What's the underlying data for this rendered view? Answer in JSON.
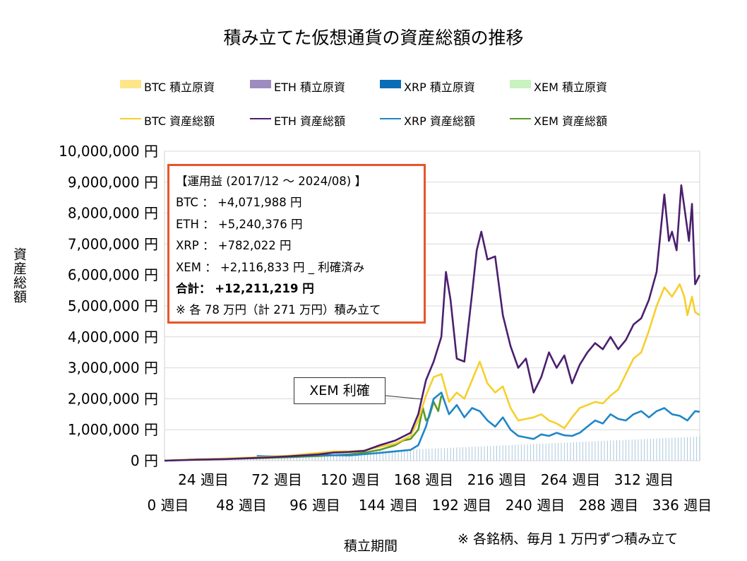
{
  "title": "積み立てた仮想通貨の資産総額の推移",
  "legend": {
    "row1": [
      {
        "label": "BTC  積立原資",
        "color": "#fde58a"
      },
      {
        "label": "ETH  積立原資",
        "color": "#9e8bbf"
      },
      {
        "label": "XRP  積立原資",
        "color": "#0a6db5"
      },
      {
        "label": "XEM  積立原資",
        "color": "#c8f2c0"
      }
    ],
    "row2": [
      {
        "label": "BTC  資産総額",
        "color": "#f7cf2c"
      },
      {
        "label": "ETH  資産総額",
        "color": "#4b1f6e"
      },
      {
        "label": "XRP  資産総額",
        "color": "#1f86c8"
      },
      {
        "label": "XEM  資産総額",
        "color": "#5a9a28"
      }
    ]
  },
  "note": {
    "header": "【運用益 (2017/12 ～ 2024/08) 】",
    "btc": "BTC ： +4,071,988 円",
    "eth": "ETH ： +5,240,376 円",
    "xrp": "XRP ： +782,022 円",
    "xem": "XEM ： +2,116,833 円 _ 利確済み",
    "total": "合計： +12,211,219 円",
    "footer": "※ 各 78 万円（計 271 万円）積み立て"
  },
  "callout": "XEM 利確",
  "footnote": "※ 各銘柄、毎月 1 万円ずつ積み立て",
  "chart_data": {
    "type": "line",
    "title": "積み立てた仮想通貨の資産総額の推移",
    "xlabel": "積立期間",
    "ylabel": "資産総額",
    "ylim": [
      0,
      10000000
    ],
    "xlim": [
      0,
      348
    ],
    "yticks": [
      "0 円",
      "1,000,000 円",
      "2,000,000 円",
      "3,000,000 円",
      "4,000,000 円",
      "5,000,000 円",
      "6,000,000 円",
      "7,000,000 円",
      "8,000,000 円",
      "9,000,000 円",
      "10,000,000 円"
    ],
    "xticks_upper": [
      "24 週目",
      "72 週目",
      "120 週目",
      "168 週目",
      "216 週目",
      "264 週目",
      "312 週目"
    ],
    "xticks_lower": [
      "0 週目",
      "48 週目",
      "96 週目",
      "144 週目",
      "192 週目",
      "240 週目",
      "288 週目",
      "336 週目"
    ],
    "grid": "horizontal",
    "legend_position": "top",
    "series": [
      {
        "name": "BTC 資産総額",
        "color": "#f7cf2c",
        "x": [
          0,
          20,
          40,
          60,
          80,
          100,
          110,
          120,
          130,
          140,
          150,
          160,
          165,
          170,
          175,
          180,
          185,
          190,
          195,
          200,
          205,
          210,
          215,
          220,
          225,
          230,
          235,
          240,
          245,
          250,
          255,
          260,
          265,
          270,
          275,
          280,
          285,
          290,
          295,
          300,
          305,
          310,
          315,
          320,
          325,
          330,
          335,
          338,
          340,
          343,
          345,
          348
        ],
        "y": [
          0,
          40000,
          70000,
          110000,
          160000,
          250000,
          300000,
          300000,
          330000,
          450000,
          550000,
          800000,
          1300000,
          2100000,
          2700000,
          2800000,
          1900000,
          2200000,
          2000000,
          2600000,
          3200000,
          2500000,
          2200000,
          2400000,
          1700000,
          1300000,
          1350000,
          1400000,
          1500000,
          1300000,
          1200000,
          1050000,
          1400000,
          1700000,
          1800000,
          1900000,
          1850000,
          2100000,
          2300000,
          2800000,
          3300000,
          3500000,
          4200000,
          5000000,
          5600000,
          5300000,
          5700000,
          5300000,
          4700000,
          5300000,
          4800000,
          4700000
        ]
      },
      {
        "name": "ETH 資産総額",
        "color": "#4b1f6e",
        "x": [
          0,
          20,
          40,
          60,
          80,
          100,
          110,
          120,
          130,
          140,
          150,
          160,
          165,
          170,
          175,
          180,
          183,
          186,
          190,
          195,
          200,
          203,
          206,
          210,
          215,
          220,
          225,
          230,
          235,
          240,
          245,
          250,
          255,
          260,
          265,
          270,
          275,
          280,
          285,
          290,
          295,
          300,
          305,
          310,
          315,
          320,
          325,
          328,
          330,
          333,
          336,
          338,
          341,
          343,
          345,
          348
        ],
        "y": [
          0,
          30000,
          50000,
          90000,
          140000,
          200000,
          260000,
          280000,
          320000,
          500000,
          650000,
          900000,
          1500000,
          2600000,
          3200000,
          4000000,
          6100000,
          5200000,
          3300000,
          3200000,
          5400000,
          6800000,
          7400000,
          6500000,
          6600000,
          4700000,
          3700000,
          3000000,
          3300000,
          2200000,
          2700000,
          3500000,
          3000000,
          3400000,
          2500000,
          3100000,
          3500000,
          3800000,
          3600000,
          4000000,
          3600000,
          3900000,
          4400000,
          4600000,
          5200000,
          6100000,
          8600000,
          7100000,
          7400000,
          6800000,
          8900000,
          8200000,
          7100000,
          8300000,
          5700000,
          6000000
        ]
      },
      {
        "name": "XRP 資産総額",
        "color": "#1f86c8",
        "x": [
          60,
          80,
          100,
          120,
          140,
          160,
          165,
          170,
          175,
          180,
          185,
          190,
          195,
          200,
          205,
          210,
          215,
          220,
          225,
          230,
          235,
          240,
          245,
          250,
          255,
          260,
          265,
          270,
          275,
          280,
          285,
          290,
          295,
          300,
          305,
          310,
          315,
          320,
          325,
          330,
          335,
          340,
          345,
          348
        ],
        "y": [
          150000,
          130000,
          180000,
          170000,
          250000,
          350000,
          500000,
          1100000,
          2000000,
          2200000,
          1500000,
          1800000,
          1400000,
          1700000,
          1600000,
          1300000,
          1100000,
          1400000,
          1000000,
          800000,
          750000,
          700000,
          850000,
          800000,
          900000,
          820000,
          800000,
          900000,
          1100000,
          1300000,
          1200000,
          1500000,
          1350000,
          1300000,
          1500000,
          1600000,
          1400000,
          1600000,
          1700000,
          1500000,
          1450000,
          1300000,
          1600000,
          1580000
        ]
      },
      {
        "name": "XEM 資産総額",
        "color": "#5a9a28",
        "x": [
          0,
          20,
          40,
          60,
          80,
          100,
          120,
          130,
          140,
          150,
          155,
          160,
          165,
          168,
          170,
          172,
          175,
          178,
          180
        ],
        "y": [
          0,
          40000,
          60000,
          80000,
          110000,
          150000,
          200000,
          260000,
          350000,
          500000,
          650000,
          700000,
          1000000,
          1700000,
          1300000,
          1400000,
          1900000,
          1600000,
          2100000
        ]
      },
      {
        "name": "積立原資",
        "color": "#8ab4cf",
        "type": "bar",
        "x": [
          0,
          348
        ],
        "y": [
          0,
          780000
        ]
      }
    ]
  }
}
